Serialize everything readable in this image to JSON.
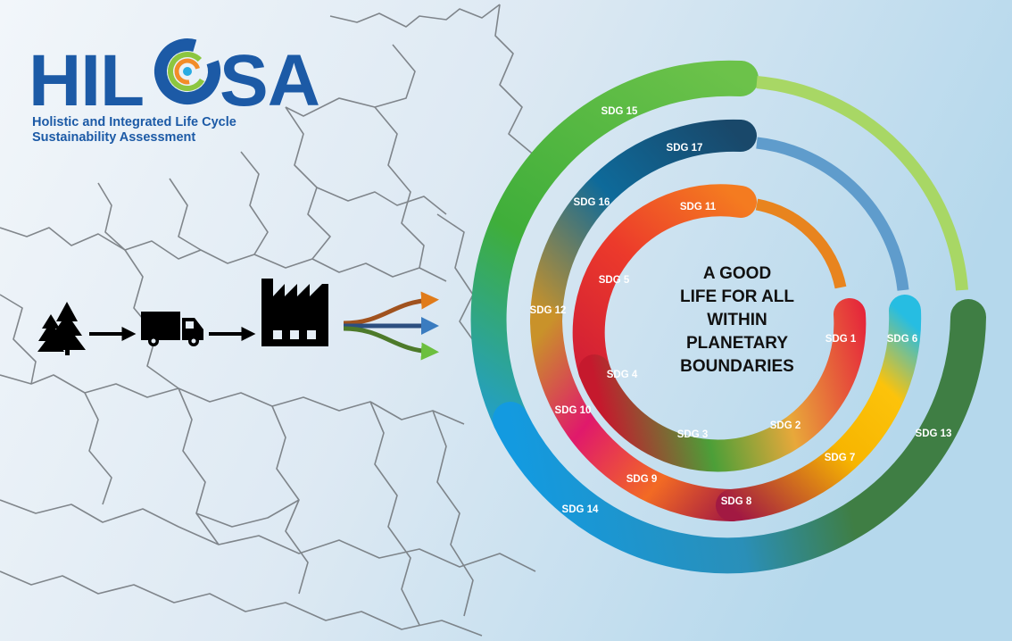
{
  "logo": {
    "text_left": "HIL",
    "text_right": "SA",
    "tagline_line1": "Holistic and Integrated Life Cycle",
    "tagline_line2": "Sustainability Assessment"
  },
  "flow": {
    "icons": [
      "trees-icon",
      "truck-icon",
      "factory-icon",
      "split-arrows-icon"
    ]
  },
  "center": {
    "lines": [
      "A GOOD",
      "LIFE FOR ALL",
      "WITHIN",
      "PLANETARY",
      "BOUNDARIES"
    ]
  },
  "rings": {
    "inner": [
      "SDG 11",
      "SDG 5",
      "SDG 4",
      "SDG 3",
      "SDG 2",
      "SDG 1"
    ],
    "middle": [
      "SDG 17",
      "SDG 16",
      "SDG 12",
      "SDG 10",
      "SDG 9",
      "SDG 8",
      "SDG 7",
      "SDG 6"
    ],
    "outer": [
      "SDG 15",
      "SDG 14",
      "SDG 13"
    ]
  },
  "colors": {
    "brand_blue": "#1c5aa6",
    "sdg1": "#e5243b",
    "sdg2": "#dda63a",
    "sdg3": "#4c9f38",
    "sdg4": "#c5192d",
    "sdg5": "#ff3a21",
    "sdg6": "#26bde2",
    "sdg7": "#fcc30b",
    "sdg8": "#a21942",
    "sdg9": "#fd6925",
    "sdg10": "#dd1367",
    "sdg11": "#fd9d24",
    "sdg12": "#bf8b2e",
    "sdg13": "#3f7e44",
    "sdg14": "#0a97d9",
    "sdg15": "#56c02b",
    "sdg16": "#00689d",
    "sdg17": "#19486a"
  }
}
